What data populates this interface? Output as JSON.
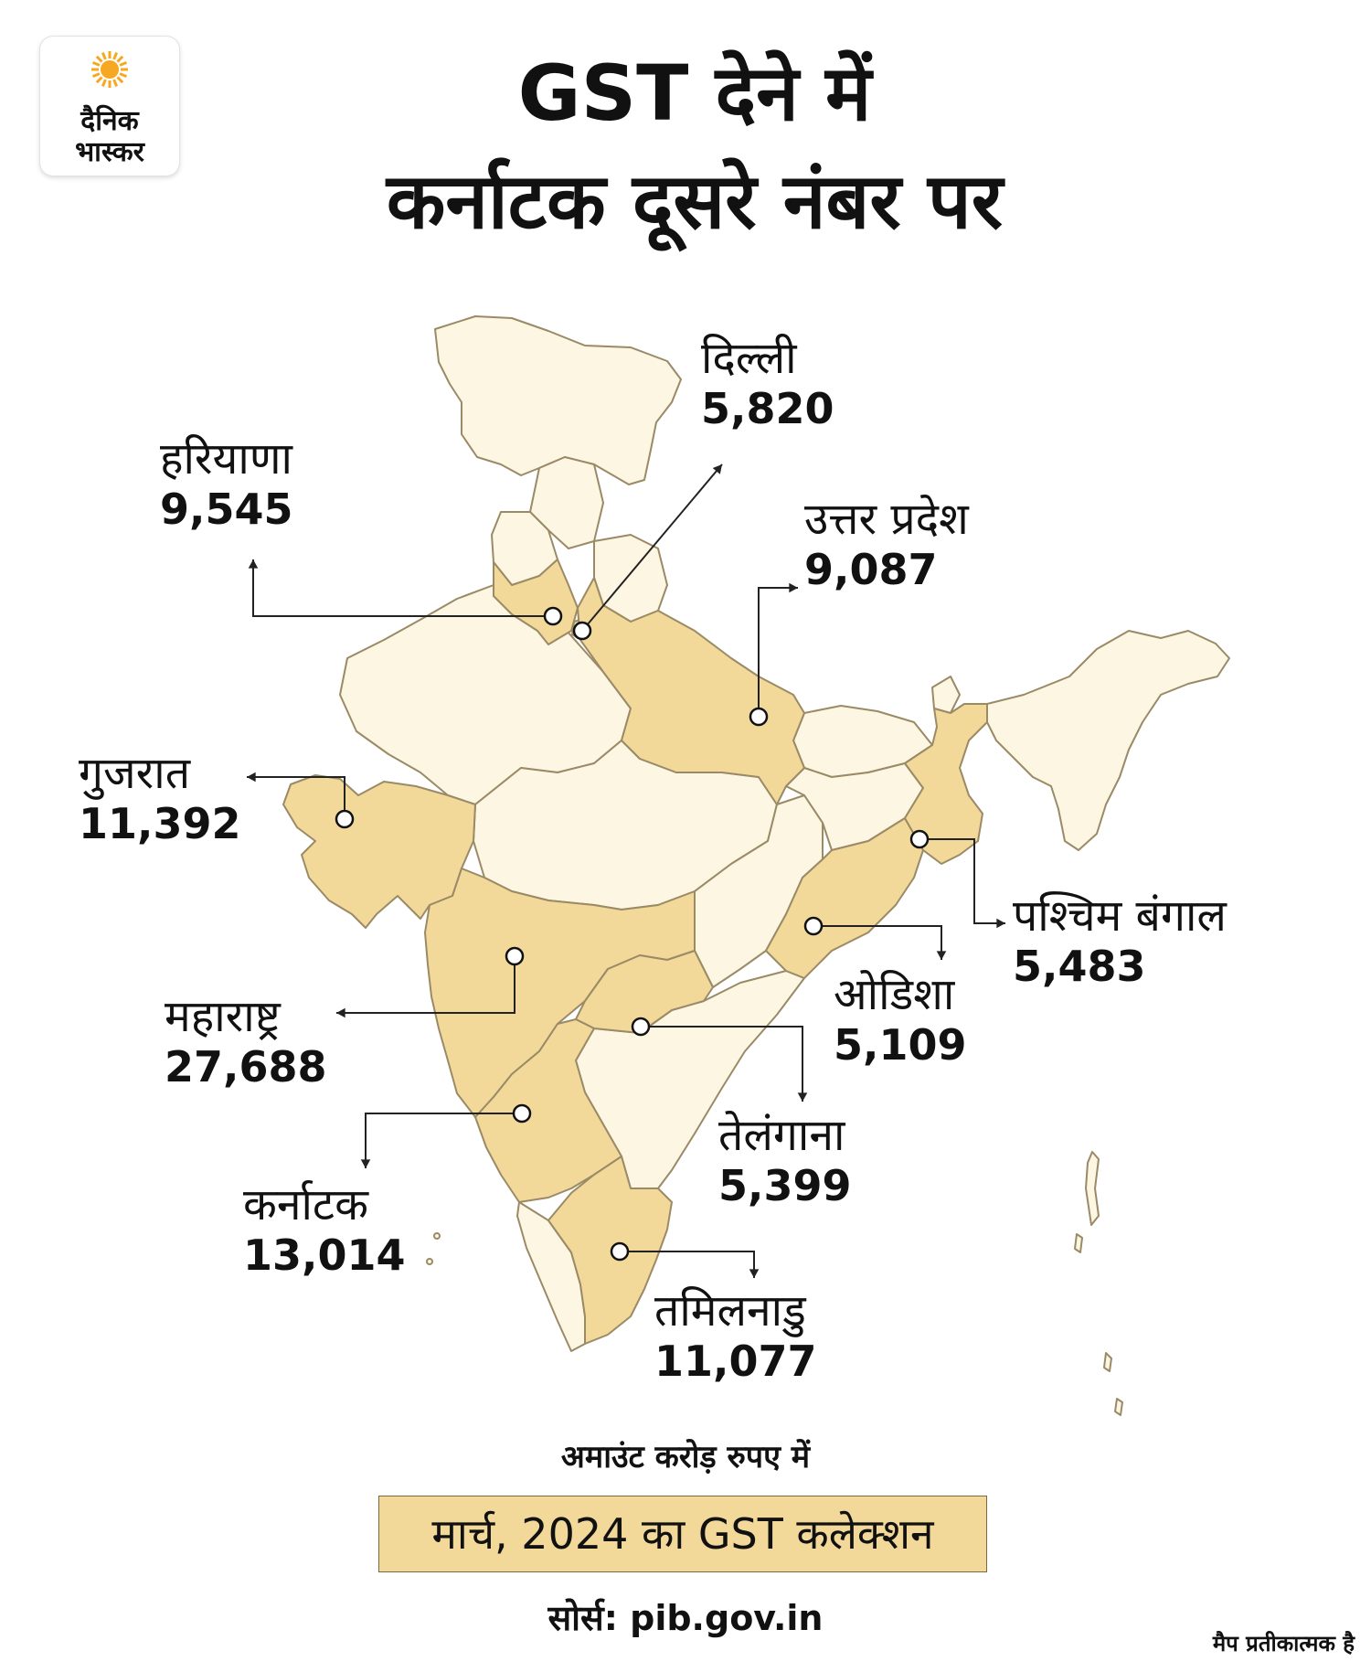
{
  "logo": {
    "line1": "दैनिक",
    "line2": "भास्कर",
    "sun_color": "#f7a823"
  },
  "title": {
    "line1": "GST देने में",
    "line2": "कर्नाटक दूसरे नंबर पर"
  },
  "colors": {
    "highlight": "#f2d99a",
    "other": "#fdf6e3",
    "border": "#9a8a66"
  },
  "states": [
    {
      "name": "दिल्ली",
      "value": "5,820"
    },
    {
      "name": "हरियाणा",
      "value": "9,545"
    },
    {
      "name": "उत्तर प्रदेश",
      "value": "9,087"
    },
    {
      "name": "गुजरात",
      "value": "11,392"
    },
    {
      "name": "पश्चिम बंगाल",
      "value": "5,483"
    },
    {
      "name": "ओडिशा",
      "value": "5,109"
    },
    {
      "name": "महाराष्ट्र",
      "value": "27,688"
    },
    {
      "name": "तेलंगाना",
      "value": "5,399"
    },
    {
      "name": "कर्नाटक",
      "value": "13,014"
    },
    {
      "name": "तमिलनाडु",
      "value": "11,077"
    }
  ],
  "unit": "अमाउंट करोड़ रुपए में",
  "box_label": "मार्च, 2024 का GST कलेक्शन",
  "source": "सोर्स: pib.gov.in",
  "note": "मैप प्रतीकात्मक है"
}
